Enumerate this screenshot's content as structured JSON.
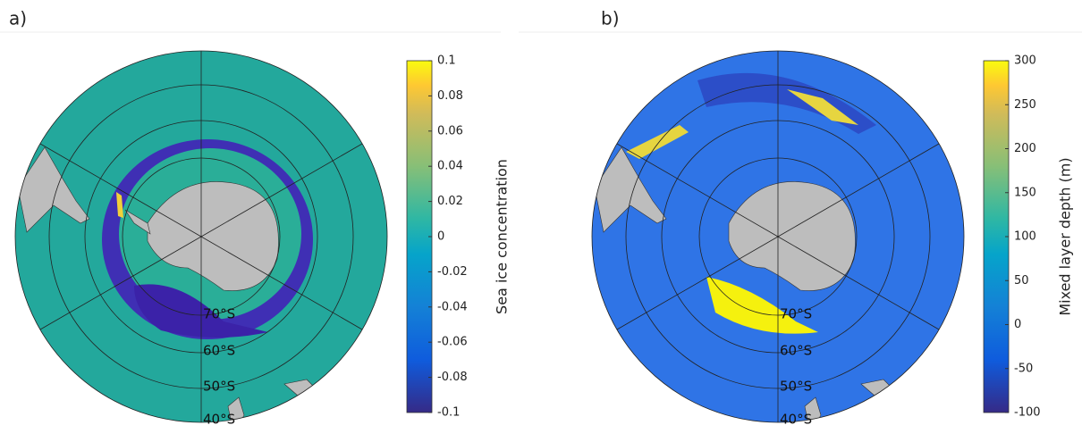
{
  "panels": [
    {
      "label": "a)",
      "colorbar": {
        "label": "Sea ice concentration",
        "lim": [
          -0.1,
          0.1
        ],
        "ticks": [
          0.1,
          0.08,
          0.06,
          0.04,
          0.02,
          0,
          -0.02,
          -0.04,
          -0.06,
          -0.08,
          -0.1
        ]
      },
      "lat_labels": [
        "70°S",
        "60°S",
        "50°S",
        "40°S"
      ]
    },
    {
      "label": "b)",
      "colorbar": {
        "label": "Mixed layer depth (m)",
        "lim": [
          -100,
          300
        ],
        "ticks": [
          300,
          250,
          200,
          150,
          100,
          50,
          0,
          -50,
          -100
        ]
      },
      "lat_labels": [
        "70°S",
        "60°S",
        "50°S",
        "40°S"
      ]
    }
  ]
}
